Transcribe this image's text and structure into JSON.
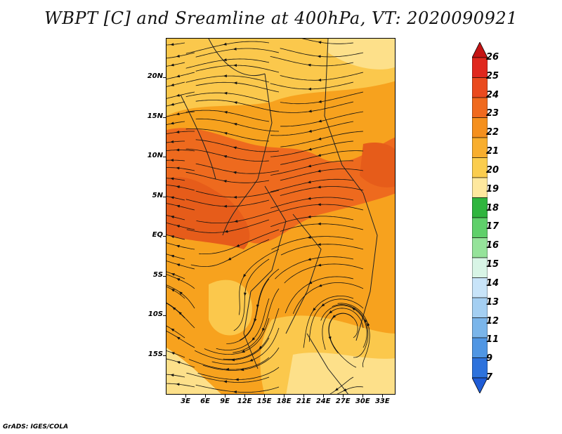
{
  "title": "WBPT [C] and Sreamline at 400hPa, VT: 2020090921",
  "credit": "GrADS: IGES/COLA",
  "map": {
    "lat_range": [
      -20,
      25
    ],
    "lon_range": [
      0,
      35
    ],
    "y_ticks": [
      "20N",
      "15N",
      "10N",
      "5N",
      "EQ",
      "5S",
      "10S",
      "15S"
    ],
    "y_tick_values": [
      20,
      15,
      10,
      5,
      0,
      -5,
      -10,
      -15
    ],
    "x_ticks": [
      "3E",
      "6E",
      "9E",
      "12E",
      "15E",
      "18E",
      "21E",
      "24E",
      "27E",
      "30E",
      "33E"
    ],
    "x_tick_values": [
      3,
      6,
      9,
      12,
      15,
      18,
      21,
      24,
      27,
      30,
      33
    ],
    "colors": {
      "base": "#f7a21e",
      "warm": "#ee6a1e",
      "hot": "#e65c1a",
      "mild": "#fbc84c",
      "light": "#fde08a",
      "streamline": "#111111"
    }
  },
  "colorbar": {
    "labels": [
      "26",
      "25",
      "24",
      "23",
      "22",
      "21",
      "20",
      "19",
      "18",
      "17",
      "16",
      "15",
      "14",
      "13",
      "12",
      "11",
      "9",
      "7"
    ],
    "colors": [
      "#c41414",
      "#e0281e",
      "#ea4a1e",
      "#f06a1e",
      "#f5901e",
      "#f8ae2e",
      "#fbcd4e",
      "#fee89e",
      "#2fb53e",
      "#5fd06a",
      "#95e39a",
      "#d8f5e6",
      "#c8e4f9",
      "#a4cff2",
      "#7ab5ea",
      "#5096e3",
      "#2d72dc",
      "#1f5cd6"
    ]
  }
}
